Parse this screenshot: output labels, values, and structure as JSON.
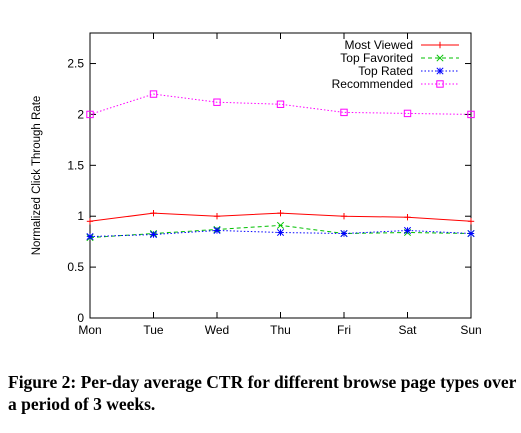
{
  "caption": "Figure 2: Per-day average CTR for different browse page types over a period of 3 weeks.",
  "chart_data": {
    "type": "line",
    "title": "",
    "xlabel": "",
    "ylabel": "Normalized Click Through Rate",
    "categories": [
      "Mon",
      "Tue",
      "Wed",
      "Thu",
      "Fri",
      "Sat",
      "Sun"
    ],
    "ylim": [
      0,
      2.8
    ],
    "yticks": [
      "0",
      "0.5",
      "1",
      "1.5",
      "2",
      "2.5"
    ],
    "ytick_values": [
      0,
      0.5,
      1,
      1.5,
      2,
      2.5
    ],
    "grid": false,
    "legend_position": "top-right",
    "series": [
      {
        "name": "Most Viewed",
        "color": "#ff0000",
        "marker": "plus",
        "dash": "solid",
        "values": [
          0.95,
          1.03,
          1.0,
          1.03,
          1.0,
          0.99,
          0.95
        ]
      },
      {
        "name": "Top Favorited",
        "color": "#00c000",
        "marker": "cross",
        "dash": "dashed",
        "values": [
          0.79,
          0.83,
          0.87,
          0.91,
          0.83,
          0.84,
          0.83
        ]
      },
      {
        "name": "Top Rated",
        "color": "#0000ff",
        "marker": "star",
        "dash": "dotted",
        "values": [
          0.8,
          0.82,
          0.86,
          0.84,
          0.83,
          0.86,
          0.83
        ]
      },
      {
        "name": "Recommended",
        "color": "#ff00ff",
        "marker": "square",
        "dash": "dotted",
        "values": [
          2.0,
          2.2,
          2.12,
          2.1,
          2.02,
          2.01,
          2.0
        ]
      }
    ]
  }
}
